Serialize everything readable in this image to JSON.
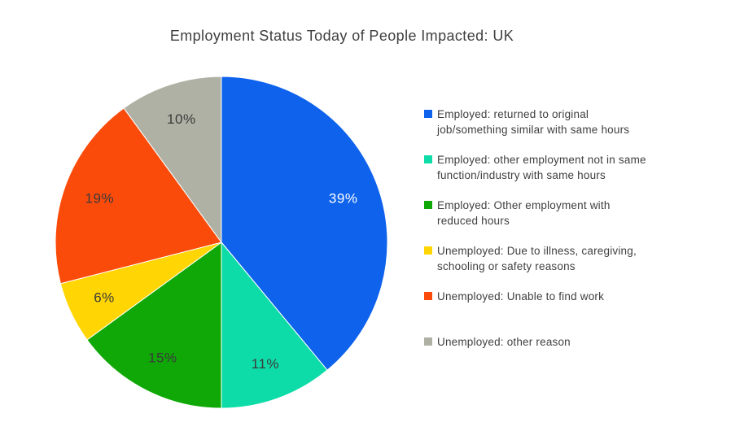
{
  "chart_data": {
    "type": "pie",
    "title": "Employment Status Today of People Impacted: UK",
    "categories": [
      "Employed: returned to original job/something similar with same hours",
      "Employed: other employment not in same function/industry with same hours",
      "Employed: Other employment with reduced hours",
      "Unemployed: Due to illness, caregiving, schooling or safety reasons",
      "Unemployed: Unable to find work",
      "Unemployed: other reason"
    ],
    "values": [
      39,
      11,
      15,
      6,
      19,
      10
    ],
    "labels": [
      "39%",
      "11%",
      "15%",
      "6%",
      "19%",
      "10%"
    ],
    "colors": [
      "#0E62EC",
      "#0EDCA8",
      "#10A807",
      "#FFD503",
      "#FB4B0B",
      "#AEB1A4"
    ],
    "label_colors": [
      "#FFFFFF",
      "#3A3A3A",
      "#3A3A3A",
      "#3A3A3A",
      "#3A3A3A",
      "#3A3A3A"
    ],
    "legend_position": "right",
    "start_angle_deg": 0,
    "direction": "clockwise",
    "legend": [
      "Employed: returned to original\njob/something similar with same hours",
      "Employed: other employment not in same\nfunction/industry with same hours",
      "Employed: Other employment with\nreduced hours",
      "Unemployed: Due to illness, caregiving,\nschooling or safety reasons",
      "Unemployed: Unable to find work",
      "Unemployed: other reason"
    ]
  }
}
